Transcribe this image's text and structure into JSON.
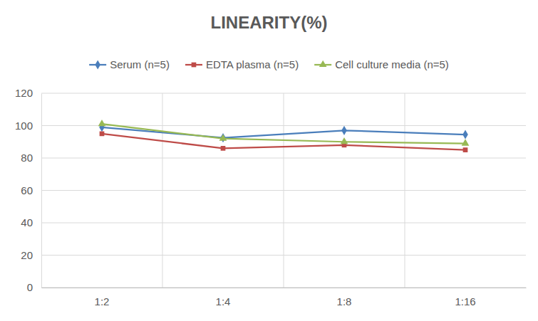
{
  "chart_data": {
    "type": "line",
    "title": "LINEARITY(%)",
    "categories": [
      "1:2",
      "1:4",
      "1:8",
      "1:16"
    ],
    "series": [
      {
        "name": "Serum (n=5)",
        "color": "#4a7ebb",
        "marker": "diamond",
        "values": [
          99,
          92.5,
          97,
          94.5
        ]
      },
      {
        "name": "EDTA plasma (n=5)",
        "color": "#be4b48",
        "marker": "square",
        "values": [
          95,
          86,
          88,
          85
        ]
      },
      {
        "name": "Cell culture media (n=5)",
        "color": "#98b954",
        "marker": "triangle",
        "values": [
          101,
          92,
          90,
          89
        ]
      }
    ],
    "ylim": [
      0,
      120
    ],
    "yticks": [
      0,
      20,
      40,
      60,
      80,
      100,
      120
    ],
    "grid": true,
    "legend": "top"
  }
}
